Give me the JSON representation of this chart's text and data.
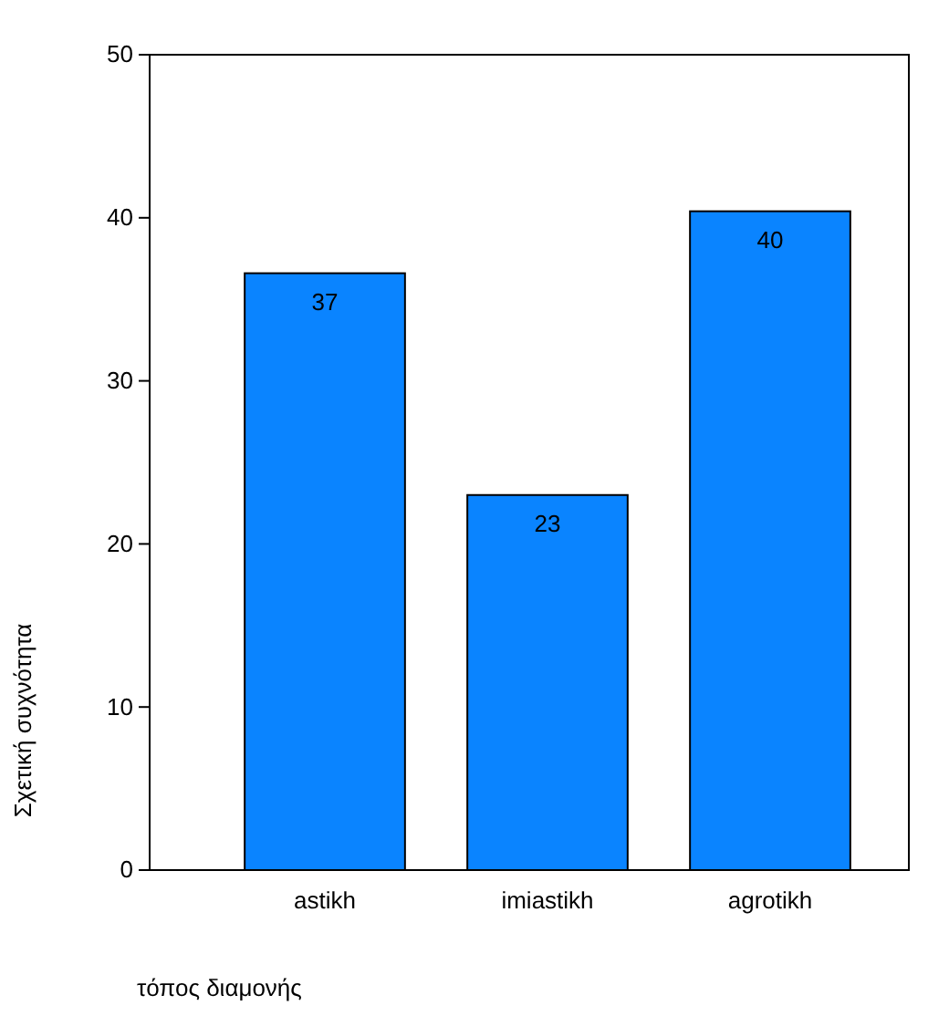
{
  "chart_data": {
    "type": "bar",
    "xlabel": "τόπος διαμονής",
    "ylabel": "Σχετική συχνότητα",
    "categories": [
      "astikh",
      "imiastikh",
      "agrotikh"
    ],
    "values": [
      36.6,
      23,
      40.4
    ],
    "value_labels": [
      "37",
      "23",
      "40"
    ],
    "color": "#0a84ff",
    "ylim": [
      0,
      50
    ],
    "yticks": [
      0,
      10,
      20,
      30,
      40,
      50
    ],
    "grid": false
  }
}
